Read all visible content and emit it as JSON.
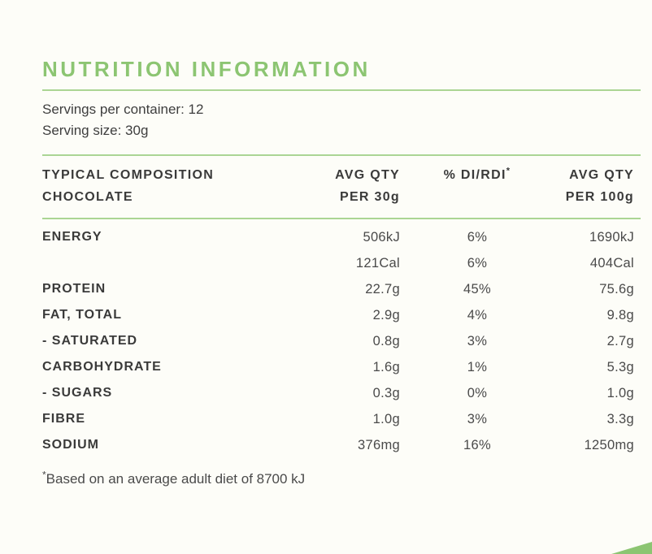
{
  "colors": {
    "green": "#8cc572",
    "green-rule": "#abd594",
    "bg": "#fdfdf8",
    "text-dark": "#3a3a3a",
    "text-value": "#4a4a4a"
  },
  "header": {
    "title": "NUTRITION INFORMATION"
  },
  "serving_info": {
    "servings_per_container": "Servings per container: 12",
    "serving_size": "Serving size: 30g"
  },
  "table": {
    "columns": {
      "composition_line1": "TYPICAL COMPOSITION",
      "composition_line2": "CHOCOLATE",
      "avg_qty_30_line1": "AVG QTY",
      "avg_qty_30_line2": "PER 30g",
      "di_rdi_label": "% DI/RDI",
      "di_rdi_asterisk": "*",
      "avg_qty_100_line1": "AVG QTY",
      "avg_qty_100_line2": "PER 100g"
    },
    "rows": [
      {
        "label": "ENERGY",
        "qty30": "506kJ",
        "di": "6%",
        "qty100": "1690kJ"
      },
      {
        "label": "",
        "qty30": "121Cal",
        "di": "6%",
        "qty100": "404Cal"
      },
      {
        "label": "PROTEIN",
        "qty30": "22.7g",
        "di": "45%",
        "qty100": "75.6g"
      },
      {
        "label": "FAT, TOTAL",
        "qty30": "2.9g",
        "di": "4%",
        "qty100": "9.8g"
      },
      {
        "label": "- SATURATED",
        "qty30": "0.8g",
        "di": "3%",
        "qty100": "2.7g"
      },
      {
        "label": "CARBOHYDRATE",
        "qty30": "1.6g",
        "di": "1%",
        "qty100": "5.3g"
      },
      {
        "label": "- SUGARS",
        "qty30": "0.3g",
        "di": "0%",
        "qty100": "1.0g"
      },
      {
        "label": "FIBRE",
        "qty30": "1.0g",
        "di": "3%",
        "qty100": "3.3g"
      },
      {
        "label": "SODIUM",
        "qty30": "376mg",
        "di": "16%",
        "qty100": "1250mg"
      }
    ]
  },
  "footnote": {
    "asterisk": "*",
    "text": "Based on an average adult diet of 8700 kJ"
  }
}
